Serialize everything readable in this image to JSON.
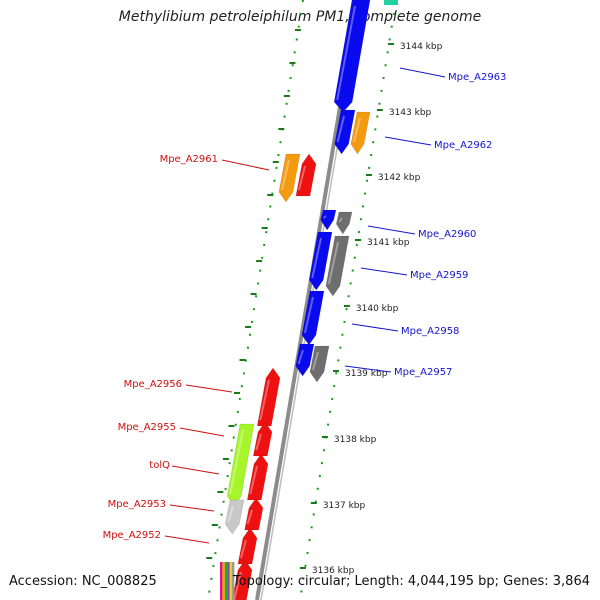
{
  "title": "Methylibium petroleiphilum PM1, complete genome",
  "footer": {
    "accession": "Accession: NC_008825",
    "summary": "Topology: circular; Length: 4,044,195 bp; Genes: 3,864"
  },
  "colors": {
    "blue": "#0a0aee",
    "orange": "#f39a0f",
    "red": "#ee1111",
    "gray": "#6e6e6e",
    "lightgray": "#c8c8c8",
    "lime": "#a6f52b",
    "tick": "#1a7a1a",
    "forward_label": "#cc1111",
    "reverse_label": "#1515cc"
  },
  "ticks": [
    {
      "label": "3144 kbp"
    },
    {
      "label": "3143 kbp"
    },
    {
      "label": "3142 kbp"
    },
    {
      "label": "3141 kbp"
    },
    {
      "label": "3140 kbp"
    },
    {
      "label": "3139 kbp"
    },
    {
      "label": "3138 kbp"
    },
    {
      "label": "3137 kbp"
    },
    {
      "label": "3136 kbp"
    }
  ],
  "genes_forward": [
    {
      "label": "Mpe_A2961"
    },
    {
      "label": "Mpe_A2956"
    },
    {
      "label": "Mpe_A2955"
    },
    {
      "label": "tolQ"
    },
    {
      "label": "Mpe_A2953"
    },
    {
      "label": "Mpe_A2952"
    }
  ],
  "genes_reverse": [
    {
      "label": "Mpe_A2963"
    },
    {
      "label": "Mpe_A2962"
    },
    {
      "label": "Mpe_A2960"
    },
    {
      "label": "Mpe_A2959"
    },
    {
      "label": "Mpe_A2958"
    },
    {
      "label": "Mpe_A2957"
    }
  ]
}
